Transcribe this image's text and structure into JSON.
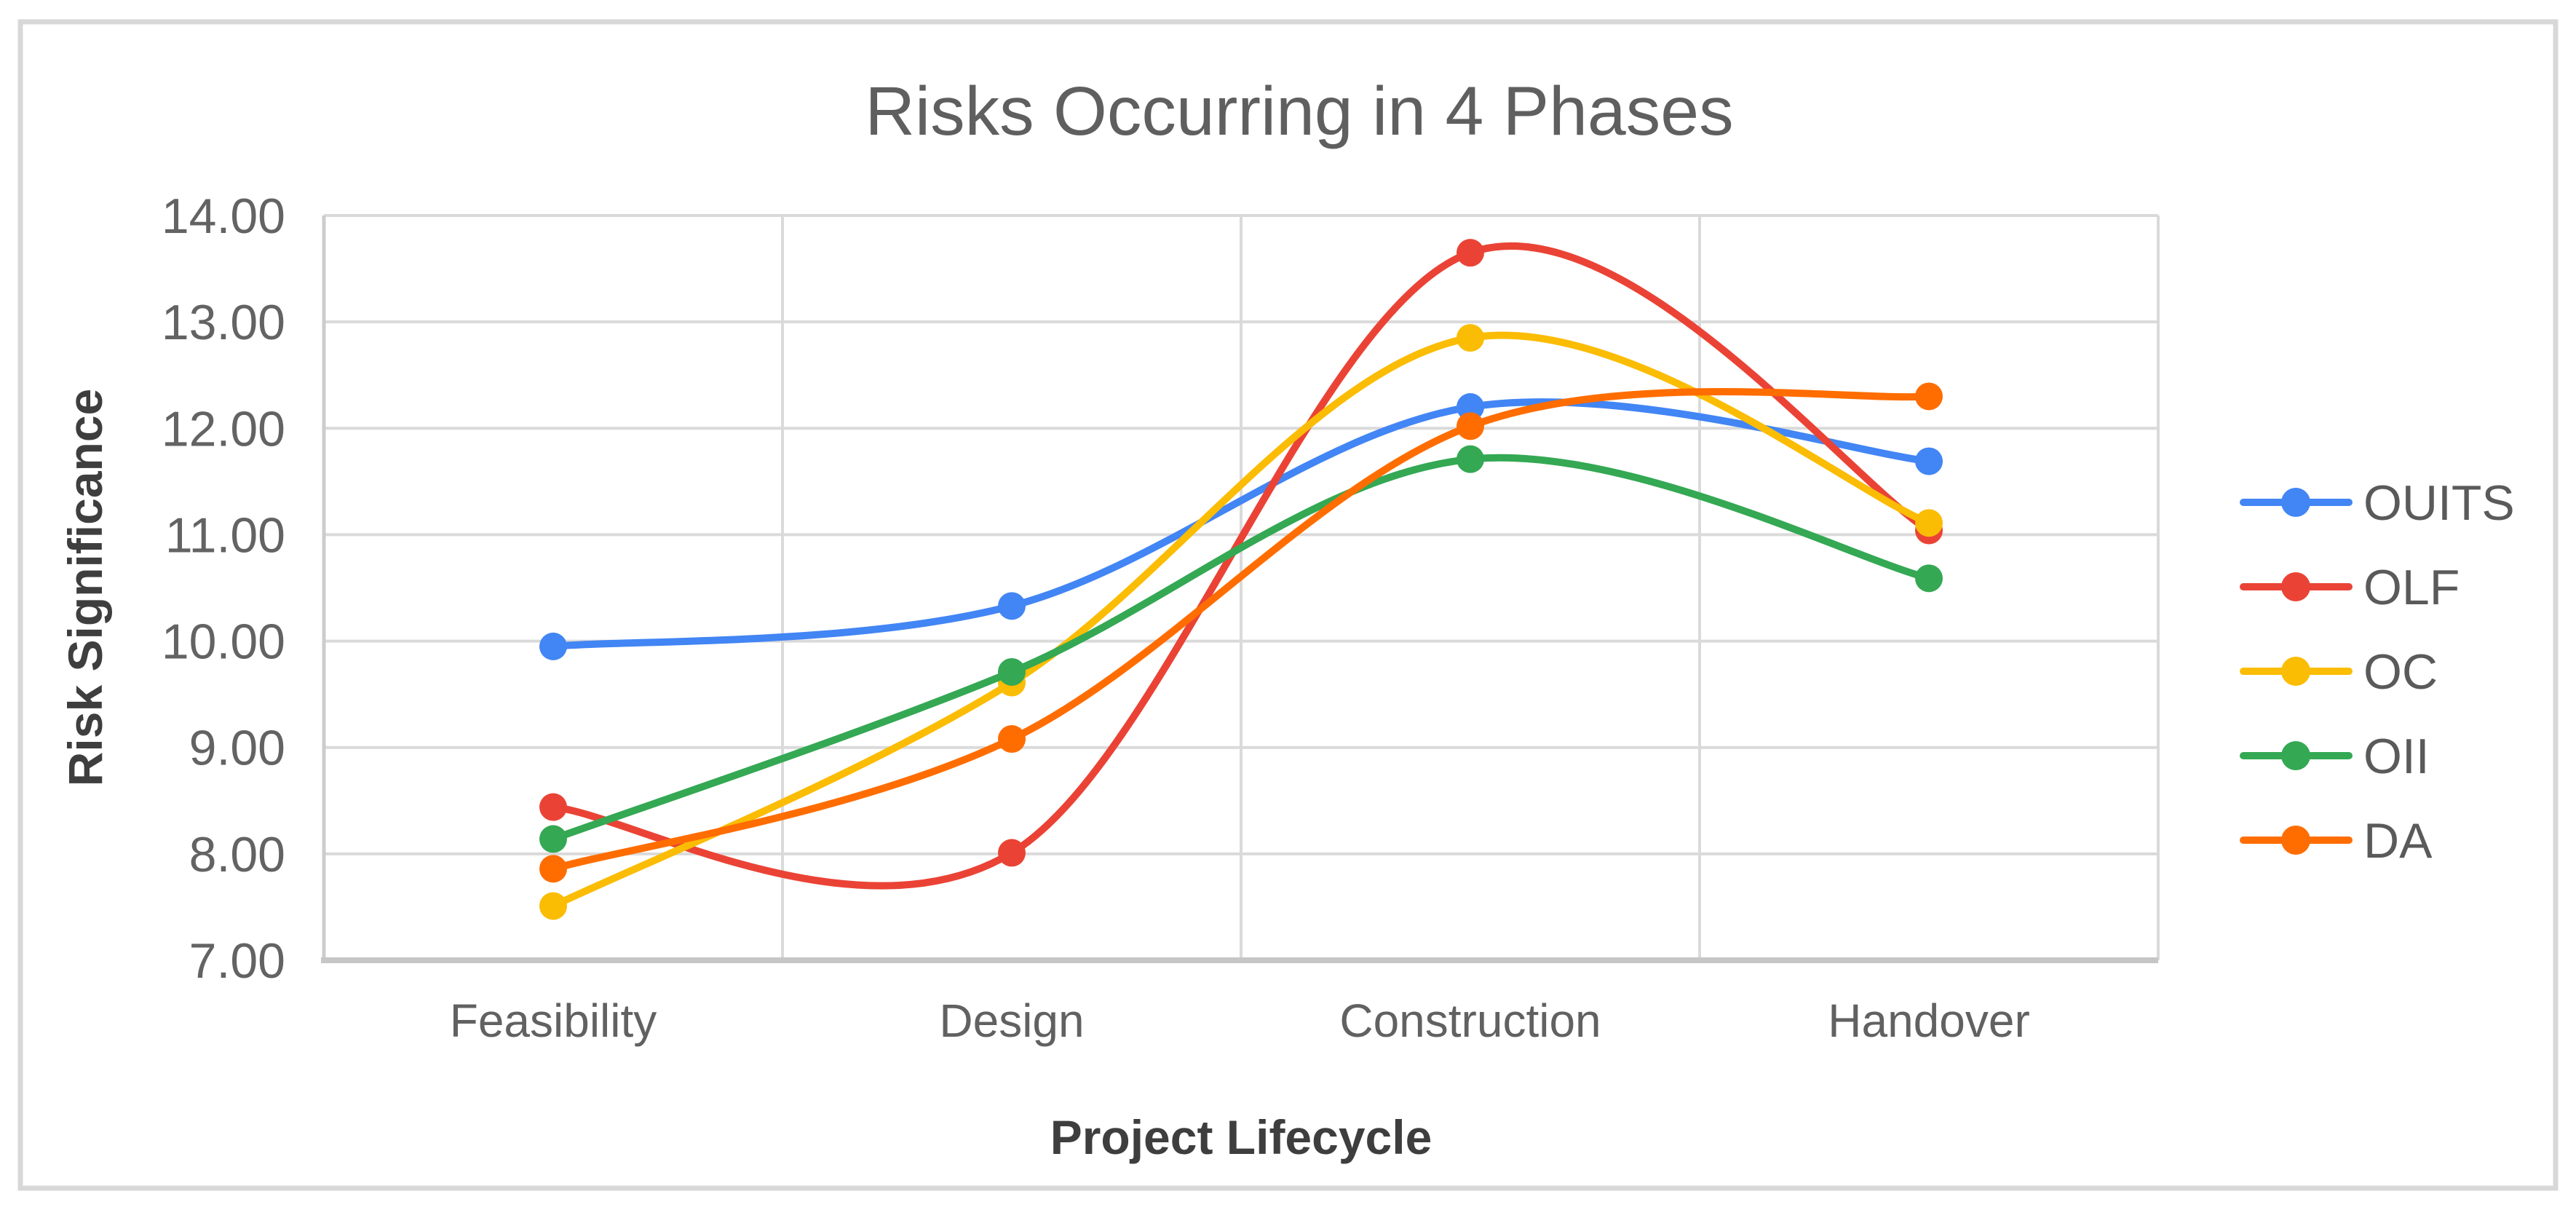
{
  "chart_data": {
    "type": "line",
    "smooth": true,
    "title": "Risks Occurring in 4 Phases",
    "xlabel": "Project Lifecycle",
    "ylabel": "Risk Significance",
    "categories": [
      "Feasibility",
      "Design",
      "Construction",
      "Handover"
    ],
    "series": [
      {
        "name": "OUITS",
        "color": "#4285F4",
        "values": [
          9.95,
          10.33,
          12.2,
          11.69
        ]
      },
      {
        "name": "OLF",
        "color": "#EA4335",
        "values": [
          8.44,
          8.01,
          13.65,
          11.04
        ]
      },
      {
        "name": "OC",
        "color": "#FBBC04",
        "values": [
          7.51,
          9.61,
          12.85,
          11.11
        ]
      },
      {
        "name": "OII",
        "color": "#34A853",
        "values": [
          8.14,
          9.71,
          11.71,
          10.59
        ]
      },
      {
        "name": "DA",
        "color": "#FF6D01",
        "values": [
          7.86,
          9.08,
          12.02,
          12.3
        ]
      }
    ],
    "y_axis": {
      "min": 7,
      "max": 14,
      "step": 1,
      "tick_labels": [
        "7.00",
        "8.00",
        "9.00",
        "10.00",
        "11.00",
        "12.00",
        "13.00",
        "14.00"
      ]
    },
    "legend_position": "right",
    "grid": true,
    "ylim": [
      7,
      14
    ]
  },
  "colors": {
    "background": "#FFFFFF",
    "border": "#D8D8D8",
    "gridline": "#DADADA",
    "axis_line": "#CCCCCC",
    "bottom_axis_line": "#C6C6C6",
    "title_text": "#5F5F5F",
    "tick_text": "#636363",
    "category_text": "#616161",
    "axis_title_text": "#3E3E3E",
    "legend_text": "#5A5A5A"
  }
}
